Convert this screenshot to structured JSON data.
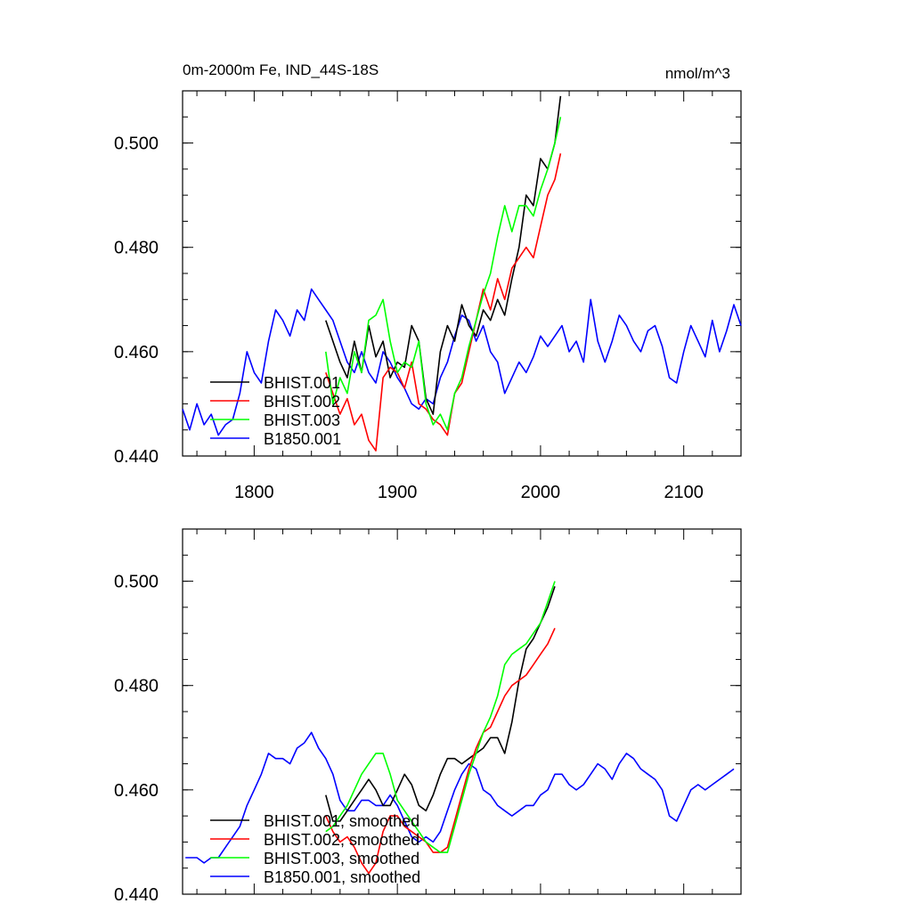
{
  "chart_data": [
    {
      "type": "line",
      "title_left": "0m-2000m Fe, IND_44S-18S",
      "title_right": "nmol/m^3",
      "xlim": [
        1750,
        2140
      ],
      "ylim": [
        0.44,
        0.51
      ],
      "x_ticks": [
        1800,
        1900,
        2000,
        2100
      ],
      "x_tick_labels": [
        "1800",
        "1900",
        "2000",
        "2100"
      ],
      "y_ticks": [
        0.44,
        0.46,
        0.48,
        0.5
      ],
      "y_tick_labels": [
        "0.440",
        "0.460",
        "0.480",
        "0.500"
      ],
      "legend_position": "lower-left",
      "series": [
        {
          "name": "BHIST.001",
          "color": "#000000",
          "x": [
            1850,
            1855,
            1860,
            1865,
            1870,
            1875,
            1880,
            1885,
            1890,
            1895,
            1900,
            1905,
            1910,
            1915,
            1920,
            1925,
            1930,
            1935,
            1940,
            1945,
            1950,
            1955,
            1960,
            1965,
            1970,
            1975,
            1980,
            1985,
            1990,
            1995,
            2000,
            2005,
            2010,
            2014
          ],
          "y": [
            0.466,
            0.462,
            0.458,
            0.455,
            0.462,
            0.456,
            0.465,
            0.459,
            0.462,
            0.455,
            0.458,
            0.457,
            0.465,
            0.462,
            0.451,
            0.448,
            0.46,
            0.465,
            0.462,
            0.469,
            0.465,
            0.463,
            0.468,
            0.466,
            0.47,
            0.467,
            0.474,
            0.48,
            0.49,
            0.488,
            0.497,
            0.495,
            0.5,
            0.509
          ]
        },
        {
          "name": "BHIST.002",
          "color": "#ff0000",
          "x": [
            1850,
            1855,
            1860,
            1865,
            1870,
            1875,
            1880,
            1885,
            1890,
            1895,
            1900,
            1905,
            1910,
            1915,
            1920,
            1925,
            1930,
            1935,
            1940,
            1945,
            1950,
            1955,
            1960,
            1965,
            1970,
            1975,
            1980,
            1985,
            1990,
            1995,
            2000,
            2005,
            2010,
            2014
          ],
          "y": [
            0.456,
            0.452,
            0.448,
            0.451,
            0.446,
            0.448,
            0.443,
            0.441,
            0.455,
            0.457,
            0.456,
            0.453,
            0.458,
            0.45,
            0.449,
            0.447,
            0.446,
            0.444,
            0.452,
            0.454,
            0.46,
            0.466,
            0.472,
            0.468,
            0.474,
            0.47,
            0.476,
            0.478,
            0.48,
            0.478,
            0.484,
            0.49,
            0.493,
            0.498
          ]
        },
        {
          "name": "BHIST.003",
          "color": "#00ff00",
          "x": [
            1850,
            1855,
            1860,
            1865,
            1870,
            1875,
            1880,
            1885,
            1890,
            1895,
            1900,
            1905,
            1910,
            1915,
            1920,
            1925,
            1930,
            1935,
            1940,
            1945,
            1950,
            1955,
            1960,
            1965,
            1970,
            1975,
            1980,
            1985,
            1990,
            1995,
            2000,
            2005,
            2010,
            2014
          ],
          "y": [
            0.46,
            0.45,
            0.455,
            0.452,
            0.46,
            0.456,
            0.466,
            0.467,
            0.47,
            0.462,
            0.456,
            0.458,
            0.457,
            0.462,
            0.45,
            0.446,
            0.448,
            0.445,
            0.452,
            0.455,
            0.461,
            0.466,
            0.471,
            0.475,
            0.482,
            0.488,
            0.483,
            0.488,
            0.488,
            0.486,
            0.491,
            0.495,
            0.5,
            0.505
          ]
        },
        {
          "name": "B1850.001",
          "color": "#0000ff",
          "x": [
            1750,
            1755,
            1760,
            1765,
            1770,
            1775,
            1780,
            1785,
            1790,
            1795,
            1800,
            1805,
            1810,
            1815,
            1820,
            1825,
            1830,
            1835,
            1840,
            1845,
            1850,
            1855,
            1860,
            1865,
            1870,
            1875,
            1880,
            1885,
            1890,
            1895,
            1900,
            1905,
            1910,
            1915,
            1920,
            1925,
            1930,
            1935,
            1940,
            1945,
            1950,
            1955,
            1960,
            1965,
            1970,
            1975,
            1980,
            1985,
            1990,
            1995,
            2000,
            2005,
            2010,
            2015,
            2020,
            2025,
            2030,
            2035,
            2040,
            2045,
            2050,
            2055,
            2060,
            2065,
            2070,
            2075,
            2080,
            2085,
            2090,
            2095,
            2100,
            2105,
            2110,
            2115,
            2120,
            2125,
            2130,
            2135,
            2140
          ],
          "y": [
            0.449,
            0.445,
            0.45,
            0.446,
            0.448,
            0.444,
            0.446,
            0.447,
            0.452,
            0.46,
            0.456,
            0.454,
            0.462,
            0.468,
            0.466,
            0.463,
            0.468,
            0.466,
            0.472,
            0.47,
            0.468,
            0.466,
            0.462,
            0.458,
            0.456,
            0.46,
            0.456,
            0.454,
            0.46,
            0.458,
            0.455,
            0.453,
            0.45,
            0.449,
            0.451,
            0.45,
            0.455,
            0.458,
            0.463,
            0.467,
            0.466,
            0.462,
            0.465,
            0.46,
            0.458,
            0.452,
            0.455,
            0.458,
            0.456,
            0.459,
            0.463,
            0.461,
            0.463,
            0.465,
            0.46,
            0.462,
            0.458,
            0.47,
            0.462,
            0.458,
            0.462,
            0.467,
            0.465,
            0.462,
            0.46,
            0.464,
            0.465,
            0.461,
            0.455,
            0.454,
            0.46,
            0.465,
            0.462,
            0.459,
            0.466,
            0.46,
            0.464,
            0.469,
            0.465
          ]
        }
      ]
    },
    {
      "type": "line",
      "xlim": [
        1750,
        2140
      ],
      "ylim": [
        0.44,
        0.51
      ],
      "x_ticks": [
        1800,
        1900,
        2000,
        2100
      ],
      "y_ticks": [
        0.44,
        0.46,
        0.48,
        0.5
      ],
      "y_tick_labels": [
        "0.440",
        "0.460",
        "0.480",
        "0.500"
      ],
      "legend_position": "lower-left",
      "series": [
        {
          "name": "BHIST.001, smoothed",
          "color": "#000000",
          "x": [
            1850,
            1855,
            1860,
            1865,
            1870,
            1875,
            1880,
            1885,
            1890,
            1895,
            1900,
            1905,
            1910,
            1915,
            1920,
            1925,
            1930,
            1935,
            1940,
            1945,
            1950,
            1955,
            1960,
            1965,
            1970,
            1975,
            1980,
            1985,
            1990,
            1995,
            2000,
            2005,
            2010
          ],
          "y": [
            0.459,
            0.454,
            0.454,
            0.456,
            0.458,
            0.46,
            0.462,
            0.46,
            0.457,
            0.457,
            0.46,
            0.463,
            0.461,
            0.457,
            0.456,
            0.459,
            0.463,
            0.466,
            0.466,
            0.465,
            0.466,
            0.467,
            0.468,
            0.47,
            0.47,
            0.467,
            0.473,
            0.481,
            0.487,
            0.489,
            0.492,
            0.495,
            0.499
          ]
        },
        {
          "name": "BHIST.002, smoothed",
          "color": "#ff0000",
          "x": [
            1850,
            1855,
            1860,
            1865,
            1870,
            1875,
            1880,
            1885,
            1890,
            1895,
            1900,
            1905,
            1910,
            1915,
            1920,
            1925,
            1930,
            1935,
            1940,
            1945,
            1950,
            1955,
            1960,
            1965,
            1970,
            1975,
            1980,
            1985,
            1990,
            1995,
            2000,
            2005,
            2010
          ],
          "y": [
            0.455,
            0.452,
            0.45,
            0.451,
            0.449,
            0.446,
            0.444,
            0.446,
            0.452,
            0.455,
            0.455,
            0.453,
            0.452,
            0.451,
            0.45,
            0.448,
            0.448,
            0.449,
            0.454,
            0.459,
            0.464,
            0.468,
            0.471,
            0.472,
            0.475,
            0.478,
            0.48,
            0.481,
            0.482,
            0.484,
            0.486,
            0.488,
            0.491
          ]
        },
        {
          "name": "BHIST.003, smoothed",
          "color": "#00ff00",
          "x": [
            1850,
            1855,
            1860,
            1865,
            1870,
            1875,
            1880,
            1885,
            1890,
            1895,
            1900,
            1905,
            1910,
            1915,
            1920,
            1925,
            1930,
            1935,
            1940,
            1945,
            1950,
            1955,
            1960,
            1965,
            1970,
            1975,
            1980,
            1985,
            1990,
            1995,
            2000,
            2005,
            2010
          ],
          "y": [
            0.452,
            0.453,
            0.455,
            0.457,
            0.46,
            0.463,
            0.465,
            0.467,
            0.467,
            0.463,
            0.458,
            0.456,
            0.454,
            0.452,
            0.45,
            0.449,
            0.448,
            0.448,
            0.453,
            0.458,
            0.463,
            0.467,
            0.471,
            0.474,
            0.478,
            0.484,
            0.486,
            0.487,
            0.488,
            0.49,
            0.492,
            0.496,
            0.5
          ]
        },
        {
          "name": "B1850.001, smoothed",
          "color": "#0000ff",
          "x": [
            1752,
            1760,
            1765,
            1770,
            1775,
            1780,
            1785,
            1790,
            1795,
            1800,
            1805,
            1810,
            1815,
            1820,
            1825,
            1830,
            1835,
            1840,
            1845,
            1850,
            1855,
            1860,
            1865,
            1870,
            1875,
            1880,
            1885,
            1890,
            1895,
            1900,
            1905,
            1910,
            1915,
            1920,
            1925,
            1930,
            1935,
            1940,
            1945,
            1950,
            1955,
            1960,
            1965,
            1970,
            1975,
            1980,
            1985,
            1990,
            1995,
            2000,
            2005,
            2010,
            2015,
            2020,
            2025,
            2030,
            2035,
            2040,
            2045,
            2050,
            2055,
            2060,
            2065,
            2070,
            2075,
            2080,
            2085,
            2090,
            2095,
            2100,
            2105,
            2110,
            2115,
            2120,
            2125,
            2130,
            2135
          ],
          "y": [
            0.447,
            0.447,
            0.446,
            0.447,
            0.447,
            0.449,
            0.451,
            0.453,
            0.457,
            0.46,
            0.463,
            0.467,
            0.466,
            0.466,
            0.465,
            0.468,
            0.469,
            0.471,
            0.468,
            0.466,
            0.463,
            0.458,
            0.456,
            0.456,
            0.458,
            0.458,
            0.457,
            0.457,
            0.459,
            0.457,
            0.454,
            0.451,
            0.45,
            0.451,
            0.45,
            0.452,
            0.456,
            0.46,
            0.463,
            0.465,
            0.464,
            0.46,
            0.459,
            0.457,
            0.456,
            0.455,
            0.456,
            0.457,
            0.457,
            0.459,
            0.46,
            0.463,
            0.463,
            0.461,
            0.46,
            0.461,
            0.463,
            0.465,
            0.464,
            0.462,
            0.465,
            0.467,
            0.466,
            0.464,
            0.463,
            0.462,
            0.46,
            0.455,
            0.454,
            0.457,
            0.46,
            0.461,
            0.46,
            0.461,
            0.462,
            0.463,
            0.464
          ]
        }
      ]
    }
  ]
}
